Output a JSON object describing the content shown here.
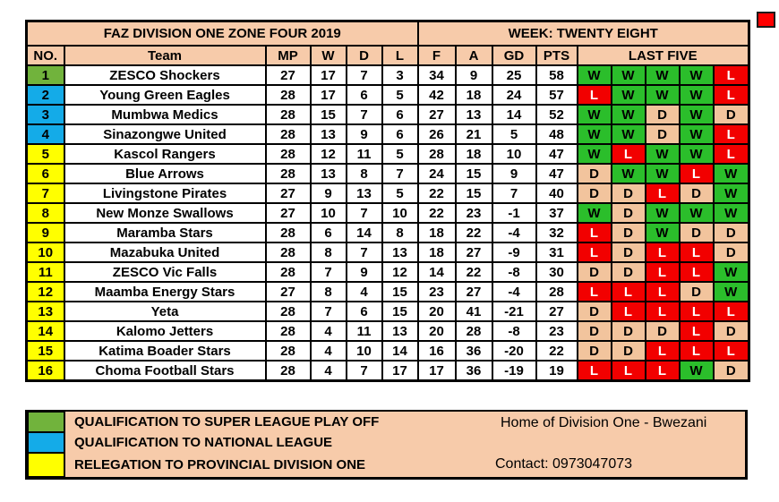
{
  "colors": {
    "header_peach": "#F7CBAA",
    "draw_peach": "#F2C49D",
    "win_green": "#2BBE2B",
    "loss_red": "#F20000",
    "playoff_green": "#71B33C",
    "national_blue": "#14ABE8",
    "relegation_yellow": "#FFFF00",
    "marker_red": "#FF0000"
  },
  "chart_data": {
    "type": "table",
    "title": "FAZ DIVISION ONE ZONE FOUR 2019",
    "subtitle": "WEEK: TWENTY EIGHT",
    "columns": [
      "NO.",
      "Team",
      "MP",
      "W",
      "D",
      "L",
      "F",
      "A",
      "GD",
      "PTS",
      "LAST FIVE"
    ],
    "rows": [
      {
        "no": 1,
        "team": "ZESCO Shockers",
        "mp": 27,
        "w": 17,
        "d": 7,
        "l": 3,
        "f": 34,
        "a": 9,
        "gd": 25,
        "pts": 58,
        "last_five": [
          "W",
          "W",
          "W",
          "W",
          "L"
        ],
        "zone": "playoff"
      },
      {
        "no": 2,
        "team": "Young Green Eagles",
        "mp": 28,
        "w": 17,
        "d": 6,
        "l": 5,
        "f": 42,
        "a": 18,
        "gd": 24,
        "pts": 57,
        "last_five": [
          "L",
          "W",
          "W",
          "W",
          "L"
        ],
        "zone": "national"
      },
      {
        "no": 3,
        "team": "Mumbwa Medics",
        "mp": 28,
        "w": 15,
        "d": 7,
        "l": 6,
        "f": 27,
        "a": 13,
        "gd": 14,
        "pts": 52,
        "last_five": [
          "W",
          "W",
          "D",
          "W",
          "D"
        ],
        "zone": "national"
      },
      {
        "no": 4,
        "team": "Sinazongwe United",
        "mp": 28,
        "w": 13,
        "d": 9,
        "l": 6,
        "f": 26,
        "a": 21,
        "gd": 5,
        "pts": 48,
        "last_five": [
          "W",
          "W",
          "D",
          "W",
          "L"
        ],
        "zone": "national"
      },
      {
        "no": 5,
        "team": "Kascol Rangers",
        "mp": 28,
        "w": 12,
        "d": 11,
        "l": 5,
        "f": 28,
        "a": 18,
        "gd": 10,
        "pts": 47,
        "last_five": [
          "W",
          "L",
          "W",
          "W",
          "L"
        ],
        "zone": "relegation"
      },
      {
        "no": 6,
        "team": "Blue Arrows",
        "mp": 28,
        "w": 13,
        "d": 8,
        "l": 7,
        "f": 24,
        "a": 15,
        "gd": 9,
        "pts": 47,
        "last_five": [
          "D",
          "W",
          "W",
          "L",
          "W"
        ],
        "zone": "relegation"
      },
      {
        "no": 7,
        "team": "Livingstone Pirates",
        "mp": 27,
        "w": 9,
        "d": 13,
        "l": 5,
        "f": 22,
        "a": 15,
        "gd": 7,
        "pts": 40,
        "last_five": [
          "D",
          "D",
          "L",
          "D",
          "W"
        ],
        "zone": "relegation"
      },
      {
        "no": 8,
        "team": "New Monze Swallows",
        "mp": 27,
        "w": 10,
        "d": 7,
        "l": 10,
        "f": 22,
        "a": 23,
        "gd": -1,
        "pts": 37,
        "last_five": [
          "W",
          "D",
          "W",
          "W",
          "W"
        ],
        "zone": "relegation"
      },
      {
        "no": 9,
        "team": "Maramba Stars",
        "mp": 28,
        "w": 6,
        "d": 14,
        "l": 8,
        "f": 18,
        "a": 22,
        "gd": -4,
        "pts": 32,
        "last_five": [
          "L",
          "D",
          "W",
          "D",
          "D"
        ],
        "zone": "relegation"
      },
      {
        "no": 10,
        "team": "Mazabuka United",
        "mp": 28,
        "w": 8,
        "d": 7,
        "l": 13,
        "f": 18,
        "a": 27,
        "gd": -9,
        "pts": 31,
        "last_five": [
          "L",
          "D",
          "L",
          "L",
          "D"
        ],
        "zone": "relegation"
      },
      {
        "no": 11,
        "team": "ZESCO Vic Falls",
        "mp": 28,
        "w": 7,
        "d": 9,
        "l": 12,
        "f": 14,
        "a": 22,
        "gd": -8,
        "pts": 30,
        "last_five": [
          "D",
          "D",
          "L",
          "L",
          "W"
        ],
        "zone": "relegation"
      },
      {
        "no": 12,
        "team": "Maamba Energy Stars",
        "mp": 27,
        "w": 8,
        "d": 4,
        "l": 15,
        "f": 23,
        "a": 27,
        "gd": -4,
        "pts": 28,
        "last_five": [
          "L",
          "L",
          "L",
          "D",
          "W"
        ],
        "zone": "relegation"
      },
      {
        "no": 13,
        "team": "Yeta",
        "mp": 28,
        "w": 7,
        "d": 6,
        "l": 15,
        "f": 20,
        "a": 41,
        "gd": -21,
        "pts": 27,
        "last_five": [
          "D",
          "L",
          "L",
          "L",
          "L"
        ],
        "zone": "relegation"
      },
      {
        "no": 14,
        "team": "Kalomo Jetters",
        "mp": 28,
        "w": 4,
        "d": 11,
        "l": 13,
        "f": 20,
        "a": 28,
        "gd": -8,
        "pts": 23,
        "last_five": [
          "D",
          "D",
          "D",
          "L",
          "D"
        ],
        "zone": "relegation"
      },
      {
        "no": 15,
        "team": "Katima Boader Stars",
        "mp": 28,
        "w": 4,
        "d": 10,
        "l": 14,
        "f": 16,
        "a": 36,
        "gd": -20,
        "pts": 22,
        "last_five": [
          "D",
          "D",
          "L",
          "L",
          "L"
        ],
        "zone": "relegation"
      },
      {
        "no": 16,
        "team": "Choma Football Stars",
        "mp": 28,
        "w": 4,
        "d": 7,
        "l": 17,
        "f": 17,
        "a": 36,
        "gd": -19,
        "pts": 19,
        "last_five": [
          "L",
          "L",
          "L",
          "W",
          "D"
        ],
        "zone": "relegation"
      }
    ]
  },
  "legend": [
    {
      "zone": "playoff",
      "label": "QUALIFICATION TO SUPER LEAGUE PLAY OFF"
    },
    {
      "zone": "national",
      "label": "QUALIFICATION TO NATIONAL LEAGUE"
    },
    {
      "zone": "relegation",
      "label": "RELEGATION  TO PROVINCIAL DIVISION ONE"
    }
  ],
  "footer": {
    "home_text": "Home of Division One - Bwezani",
    "contact_text": "Contact: 0973047073"
  }
}
